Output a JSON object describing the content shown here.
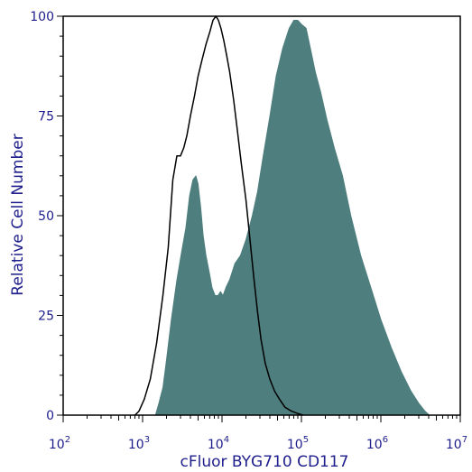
{
  "chart_data": {
    "type": "area",
    "title": "",
    "xlabel": "cFluor BYG710 CD117",
    "ylabel": "Relative Cell Number",
    "x_scale": "log",
    "xlim": [
      100,
      10000000
    ],
    "ylim": [
      0,
      100
    ],
    "x_ticks": [
      {
        "base": "10",
        "exp": "2"
      },
      {
        "base": "10",
        "exp": "3"
      },
      {
        "base": "10",
        "exp": "4"
      },
      {
        "base": "10",
        "exp": "5"
      },
      {
        "base": "10",
        "exp": "6"
      },
      {
        "base": "10",
        "exp": "7"
      }
    ],
    "y_ticks": [
      "0",
      "25",
      "50",
      "75",
      "100"
    ],
    "grid": false,
    "legend": "none",
    "series": [
      {
        "style": "filled",
        "color": "#4e7e7e",
        "x": [
          1450,
          1600,
          1800,
          2000,
          2300,
          2700,
          3100,
          3500,
          3900,
          4300,
          4700,
          5000,
          5400,
          5800,
          6300,
          6900,
          7500,
          8200,
          8900,
          9600,
          10300,
          11200,
          12500,
          14500,
          17000,
          20000,
          24000,
          28000,
          33000,
          40000,
          48000,
          58000,
          70000,
          80000,
          90000,
          100000,
          115000,
          130000,
          150000,
          175000,
          210000,
          260000,
          330000,
          420000,
          560000,
          750000,
          1000000,
          1350000,
          1800000,
          2400000,
          3000000,
          3600000,
          4100000
        ],
        "y": [
          0,
          3,
          7,
          14,
          24,
          34,
          41,
          47,
          55,
          59,
          60,
          58,
          52,
          45,
          40,
          36,
          32,
          30,
          30,
          31,
          30,
          32,
          34,
          38,
          40,
          44,
          50,
          56,
          65,
          75,
          85,
          92,
          97,
          99,
          99,
          98,
          97,
          92,
          86,
          81,
          74,
          67,
          60,
          50,
          40,
          32,
          24,
          17,
          11,
          6,
          3,
          1,
          0
        ]
      },
      {
        "style": "outline",
        "color": "#000000",
        "x": [
          800,
          900,
          1050,
          1250,
          1500,
          1800,
          2100,
          2400,
          2700,
          3000,
          3300,
          3600,
          4000,
          4500,
          5000,
          5600,
          6300,
          7000,
          7700,
          8400,
          9000,
          9700,
          10500,
          11500,
          12500,
          14000,
          15500,
          17500,
          20000,
          22500,
          25000,
          28000,
          31000,
          35000,
          40000,
          46000,
          53000,
          62000,
          75000,
          90000,
          105000
        ],
        "y": [
          0,
          1,
          4,
          9,
          18,
          30,
          42,
          59,
          65,
          65,
          67,
          70,
          75,
          80,
          85,
          89,
          93,
          96,
          99,
          100,
          99,
          97,
          94,
          90,
          86,
          79,
          72,
          63,
          54,
          44,
          35,
          26,
          19,
          13,
          9,
          6,
          4,
          2,
          1,
          0.4,
          0
        ]
      }
    ]
  }
}
